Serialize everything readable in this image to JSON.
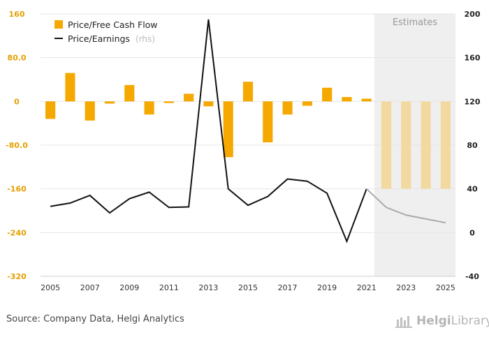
{
  "chart_data": {
    "type": "bar+line",
    "categories": [
      "2005",
      "2006",
      "2007",
      "2008",
      "2009",
      "2010",
      "2011",
      "2012",
      "2013",
      "2014",
      "2015",
      "2016",
      "2017",
      "2018",
      "2019",
      "2020",
      "2021",
      "2022",
      "2023",
      "2024",
      "2025"
    ],
    "x_tick_labels": [
      "2005",
      "2007",
      "2009",
      "2011",
      "2013",
      "2015",
      "2017",
      "2019",
      "2021",
      "2023",
      "2025"
    ],
    "series": [
      {
        "name": "Price/Free Cash Flow",
        "kind": "bar",
        "axis": "left",
        "color": "#f5a800",
        "estimate_color": "#f2d9a0",
        "values": [
          -32,
          52,
          -35,
          -4,
          30,
          -24,
          -3,
          14,
          -9,
          -102,
          36,
          -75,
          -24,
          -8,
          25,
          8,
          5,
          -160,
          -160,
          -160,
          -160
        ]
      },
      {
        "name": "Price/Earnings",
        "name_suffix": "(rhs)",
        "kind": "line",
        "axis": "right",
        "color": "#111111",
        "estimate_color": "#aaaaaa",
        "values": [
          24,
          27,
          34,
          18,
          31,
          37,
          23,
          23.5,
          195,
          40,
          25,
          33,
          49,
          47,
          36,
          -8,
          40,
          23,
          16,
          12.5,
          9
        ]
      }
    ],
    "estimates_from_index": 17,
    "estimates_label": "Estimates",
    "left_axis": {
      "min": -320,
      "max": 160,
      "ticks": [
        160,
        80,
        0,
        -80,
        -160,
        -240,
        -320
      ],
      "tick_labels": [
        "160",
        "80.0",
        "0",
        "-80.0",
        "-160",
        "-240",
        "-320"
      ],
      "color": "#e5a000"
    },
    "right_axis": {
      "min": -40,
      "max": 200,
      "ticks": [
        200,
        160,
        120,
        80,
        40,
        0,
        -40
      ],
      "tick_labels": [
        "200",
        "160",
        "120",
        "80",
        "40",
        "0",
        "-40"
      ]
    },
    "grid": true,
    "legend_position": "top-left"
  },
  "footer": {
    "source": "Source: Company Data, Helgi Analytics",
    "logo_bold": "Helgi",
    "logo_light": "Library"
  }
}
